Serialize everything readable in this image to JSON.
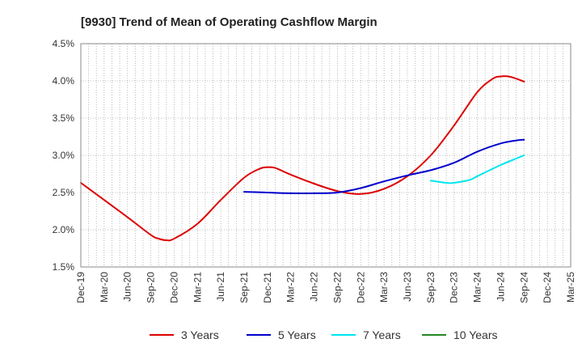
{
  "chart_data": {
    "type": "line",
    "title": "[9930]  Trend of Mean of Operating Cashflow Margin",
    "xlabel": "",
    "ylabel": "",
    "categories": [
      "Dec-19",
      "Mar-20",
      "Jun-20",
      "Sep-20",
      "Dec-20",
      "Mar-21",
      "Jun-21",
      "Sep-21",
      "Dec-21",
      "Mar-22",
      "Jun-22",
      "Sep-22",
      "Dec-22",
      "Mar-23",
      "Jun-23",
      "Sep-23",
      "Dec-23",
      "Mar-24",
      "Jun-24",
      "Sep-24",
      "Dec-24",
      "Mar-25"
    ],
    "y_ticks": [
      "1.5%",
      "2.0%",
      "2.5%",
      "3.0%",
      "3.5%",
      "4.0%",
      "4.5%"
    ],
    "ylim": [
      1.5,
      4.5
    ],
    "grid": true,
    "legend_position": "bottom",
    "series": [
      {
        "name": "3 Years",
        "color": "#dd0000",
        "points": [
          [
            "Dec-19",
            2.63
          ],
          [
            "Mar-20",
            2.4
          ],
          [
            "Jun-20",
            2.17
          ],
          [
            "Sep-20",
            1.93
          ],
          [
            "Oct-20",
            1.88
          ],
          [
            "Nov-20",
            1.86
          ],
          [
            "Dec-20",
            1.88
          ],
          [
            "Mar-21",
            2.08
          ],
          [
            "Jun-21",
            2.4
          ],
          [
            "Sep-21",
            2.7
          ],
          [
            "Nov-21",
            2.82
          ],
          [
            "Dec-21",
            2.84
          ],
          [
            "Jan-22",
            2.83
          ],
          [
            "Mar-22",
            2.74
          ],
          [
            "Jun-22",
            2.62
          ],
          [
            "Sep-22",
            2.52
          ],
          [
            "Dec-22",
            2.48
          ],
          [
            "Mar-23",
            2.55
          ],
          [
            "Jun-23",
            2.72
          ],
          [
            "Sep-23",
            3.0
          ],
          [
            "Dec-23",
            3.4
          ],
          [
            "Mar-24",
            3.85
          ],
          [
            "May-24",
            4.03
          ],
          [
            "Jun-24",
            4.06
          ],
          [
            "Jul-24",
            4.06
          ],
          [
            "Aug-24",
            4.03
          ],
          [
            "Sep-24",
            3.99
          ]
        ]
      },
      {
        "name": "5 Years",
        "color": "#0000cc",
        "points": [
          [
            "Sep-21",
            2.51
          ],
          [
            "Dec-21",
            2.5
          ],
          [
            "Mar-22",
            2.49
          ],
          [
            "Jun-22",
            2.49
          ],
          [
            "Sep-22",
            2.5
          ],
          [
            "Dec-22",
            2.56
          ],
          [
            "Mar-23",
            2.65
          ],
          [
            "Jun-23",
            2.73
          ],
          [
            "Sep-23",
            2.8
          ],
          [
            "Dec-23",
            2.9
          ],
          [
            "Mar-24",
            3.05
          ],
          [
            "Jun-24",
            3.16
          ],
          [
            "Aug-24",
            3.2
          ],
          [
            "Sep-24",
            3.21
          ]
        ]
      },
      {
        "name": "7 Years",
        "color": "#00e5ee",
        "points": [
          [
            "Sep-23",
            2.66
          ],
          [
            "Nov-23",
            2.63
          ],
          [
            "Dec-23",
            2.63
          ],
          [
            "Feb-24",
            2.67
          ],
          [
            "Mar-24",
            2.72
          ],
          [
            "Jun-24",
            2.87
          ],
          [
            "Sep-24",
            3.0
          ]
        ]
      },
      {
        "name": "10 Years",
        "color": "#228822",
        "points": []
      }
    ]
  }
}
